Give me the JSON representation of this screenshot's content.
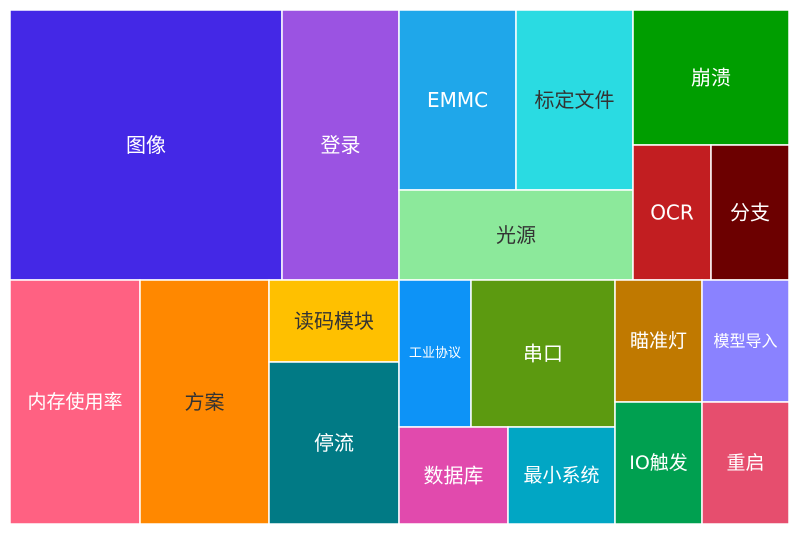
{
  "chart_data": {
    "type": "treemap",
    "items": [
      {
        "label": "图像",
        "color": "#4428e6",
        "text_color": "#ffffff"
      },
      {
        "label": "登录",
        "color": "#9b53e2",
        "text_color": "#ffffff"
      },
      {
        "label": "EMMC",
        "color": "#1fa7ea",
        "text_color": "#ffffff"
      },
      {
        "label": "标定文件",
        "color": "#2adbe2",
        "text_color": "#333333"
      },
      {
        "label": "光源",
        "color": "#8ce99b",
        "text_color": "#333333"
      },
      {
        "label": "崩溃",
        "color": "#009e00",
        "text_color": "#ffffff"
      },
      {
        "label": "OCR",
        "color": "#c21e21",
        "text_color": "#ffffff"
      },
      {
        "label": "分支",
        "color": "#6c0000",
        "text_color": "#ffffff"
      },
      {
        "label": "内存使用率",
        "color": "#ff6182",
        "text_color": "#ffffff"
      },
      {
        "label": "方案",
        "color": "#ff8800",
        "text_color": "#333333"
      },
      {
        "label": "读码模块",
        "color": "#ffc000",
        "text_color": "#333333"
      },
      {
        "label": "停流",
        "color": "#017a85",
        "text_color": "#ffffff"
      },
      {
        "label": "工业协议",
        "color": "#0d93f7",
        "text_color": "#ffffff"
      },
      {
        "label": "串口",
        "color": "#5c9a10",
        "text_color": "#ffffff"
      },
      {
        "label": "数据库",
        "color": "#e14aad",
        "text_color": "#ffffff"
      },
      {
        "label": "最小系统",
        "color": "#01a6c4",
        "text_color": "#ffffff"
      },
      {
        "label": "瞄准灯",
        "color": "#c07900",
        "text_color": "#ffffff"
      },
      {
        "label": "模型导入",
        "color": "#8a82ff",
        "text_color": "#ffffff"
      },
      {
        "label": "IO触发",
        "color": "#00a050",
        "text_color": "#ffffff"
      },
      {
        "label": "重启",
        "color": "#e64e6e",
        "text_color": "#ffffff"
      }
    ]
  }
}
